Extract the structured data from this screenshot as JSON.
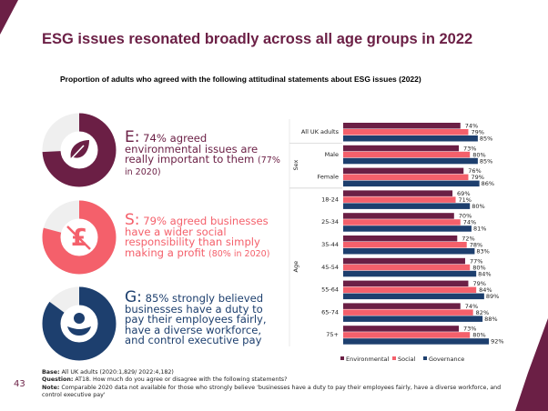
{
  "title": "ESG issues resonated broadly across all age groups in 2022",
  "subtitle": "Proportion of adults who agreed with the following attitudinal statements about ESG issues (2022)",
  "colors": {
    "environmental": "#6b1f45",
    "social": "#f4606b",
    "governance": "#1d3f6e",
    "track": "#efefef"
  },
  "statements": [
    {
      "letter": "E:",
      "text": " 74% agreed environmental issues are really important to them ",
      "note": "(77% in 2020)",
      "value": 74,
      "icon": "leaf-icon"
    },
    {
      "letter": "S:",
      "text": " 79% agreed businesses have a wider social responsibility than simply making a profit ",
      "note": "(80% in 2020)",
      "value": 79,
      "icon": "crossed-pound-icon"
    },
    {
      "letter": "G:",
      "text": " 85% strongly believed businesses have a duty to pay their employees fairly, have a diverse workforce, and control executive pay",
      "note": "",
      "value": 85,
      "icon": "person-icon"
    }
  ],
  "chart_data": {
    "type": "bar",
    "orientation": "horizontal",
    "categories": [
      "All UK adults",
      "Male",
      "Female",
      "18-24",
      "25-34",
      "35-44",
      "45-54",
      "55-64",
      "65-74",
      "75+"
    ],
    "groups": [
      {
        "label": "",
        "categories": [
          "All UK adults"
        ]
      },
      {
        "label": "Sex",
        "categories": [
          "Male",
          "Female"
        ]
      },
      {
        "label": "Age",
        "categories": [
          "18-24",
          "25-34",
          "35-44",
          "45-54",
          "55-64",
          "65-74",
          "75+"
        ]
      }
    ],
    "series": [
      {
        "name": "Environmental",
        "values": [
          74,
          73,
          76,
          69,
          70,
          72,
          77,
          79,
          74,
          73
        ]
      },
      {
        "name": "Social",
        "values": [
          79,
          80,
          79,
          71,
          74,
          78,
          80,
          84,
          82,
          80
        ]
      },
      {
        "name": "Governance",
        "values": [
          85,
          85,
          86,
          80,
          81,
          83,
          84,
          89,
          88,
          92
        ]
      }
    ],
    "value_suffix": "%",
    "xlim": [
      0,
      100
    ],
    "legend": "bottom",
    "grid": false
  },
  "footer": {
    "base_label": "Base:",
    "base": " All UK adults (2020:1,829/ 2022:4,182)",
    "question_label": "Question:",
    "question": " AT18. How much do you agree or disagree with the following statements?",
    "note_label": "Note:",
    "note": " Comparable 2020 data not available for those who strongly believe 'businesses have a duty to pay their employees fairly, have a diverse workforce, and control executive pay'"
  },
  "page_number": "43"
}
